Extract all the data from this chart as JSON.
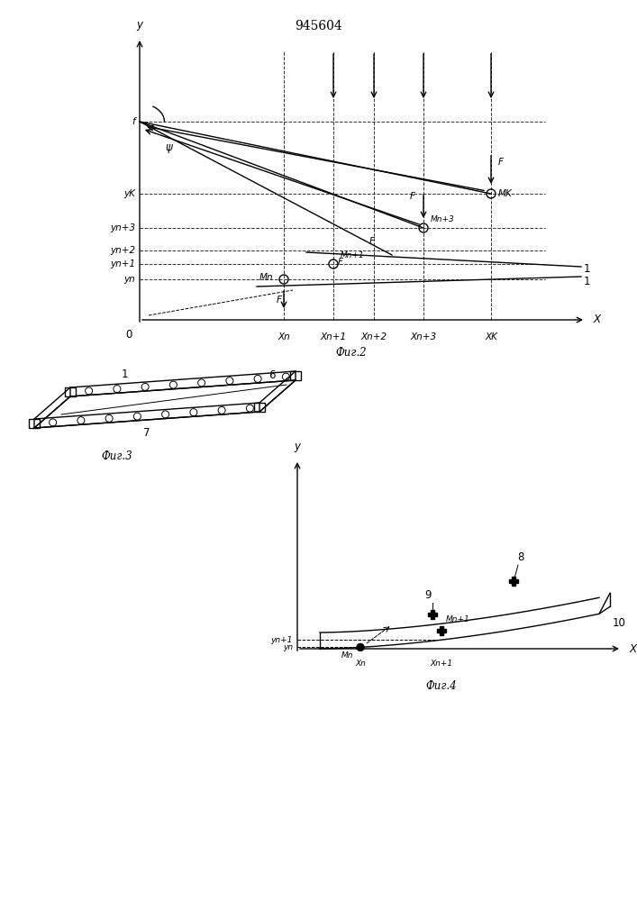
{
  "title": "945604",
  "fig2_caption": "Фиг.2",
  "fig3_caption": "Фиг.3",
  "fig4_caption": "Фиг.4",
  "bg_color": "#ffffff"
}
